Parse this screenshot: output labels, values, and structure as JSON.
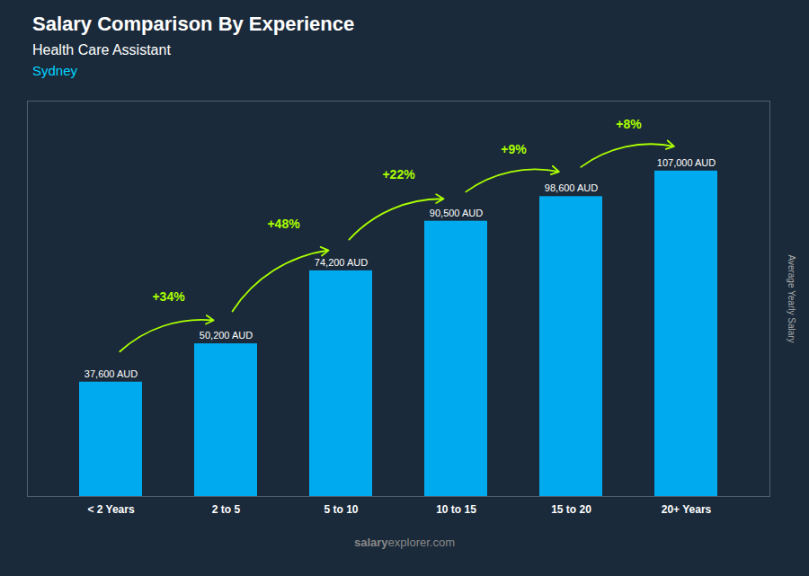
{
  "chart_data": {
    "type": "bar",
    "title": "Salary Comparison By Experience",
    "subtitle": "Health Care Assistant",
    "city": "Sydney",
    "categories": [
      "< 2 Years",
      "2 to 5",
      "5 to 10",
      "10 to 15",
      "15 to 20",
      "20+ Years"
    ],
    "values": [
      37600,
      50200,
      74200,
      90500,
      98600,
      107000
    ],
    "value_labels": [
      "37,600 AUD",
      "50,200 AUD",
      "74,200 AUD",
      "90,500 AUD",
      "98,600 AUD",
      "107,000 AUD"
    ],
    "data_labels": true,
    "color": "#00aaee",
    "ylim": [
      0,
      130000
    ],
    "tick_labels": "x",
    "ylabel": "Average Yearly Salary",
    "annotations": [
      {
        "text": "+34%",
        "from": "< 2 Years",
        "to": "2 to 5",
        "color": "#aaff00"
      },
      {
        "text": "+48%",
        "from": "2 to 5",
        "to": "5 to 10",
        "color": "#aaff00"
      },
      {
        "text": "+22%",
        "from": "5 to 10",
        "to": "10 to 15",
        "color": "#aaff00"
      },
      {
        "text": "+9%",
        "from": "10 to 15",
        "to": "15 to 20",
        "color": "#aaff00"
      },
      {
        "text": "+8%",
        "from": "15 to 20",
        "to": "20+ Years",
        "color": "#aaff00"
      }
    ],
    "caption": "salaryexplorer.com",
    "caption_bold": "salary"
  }
}
